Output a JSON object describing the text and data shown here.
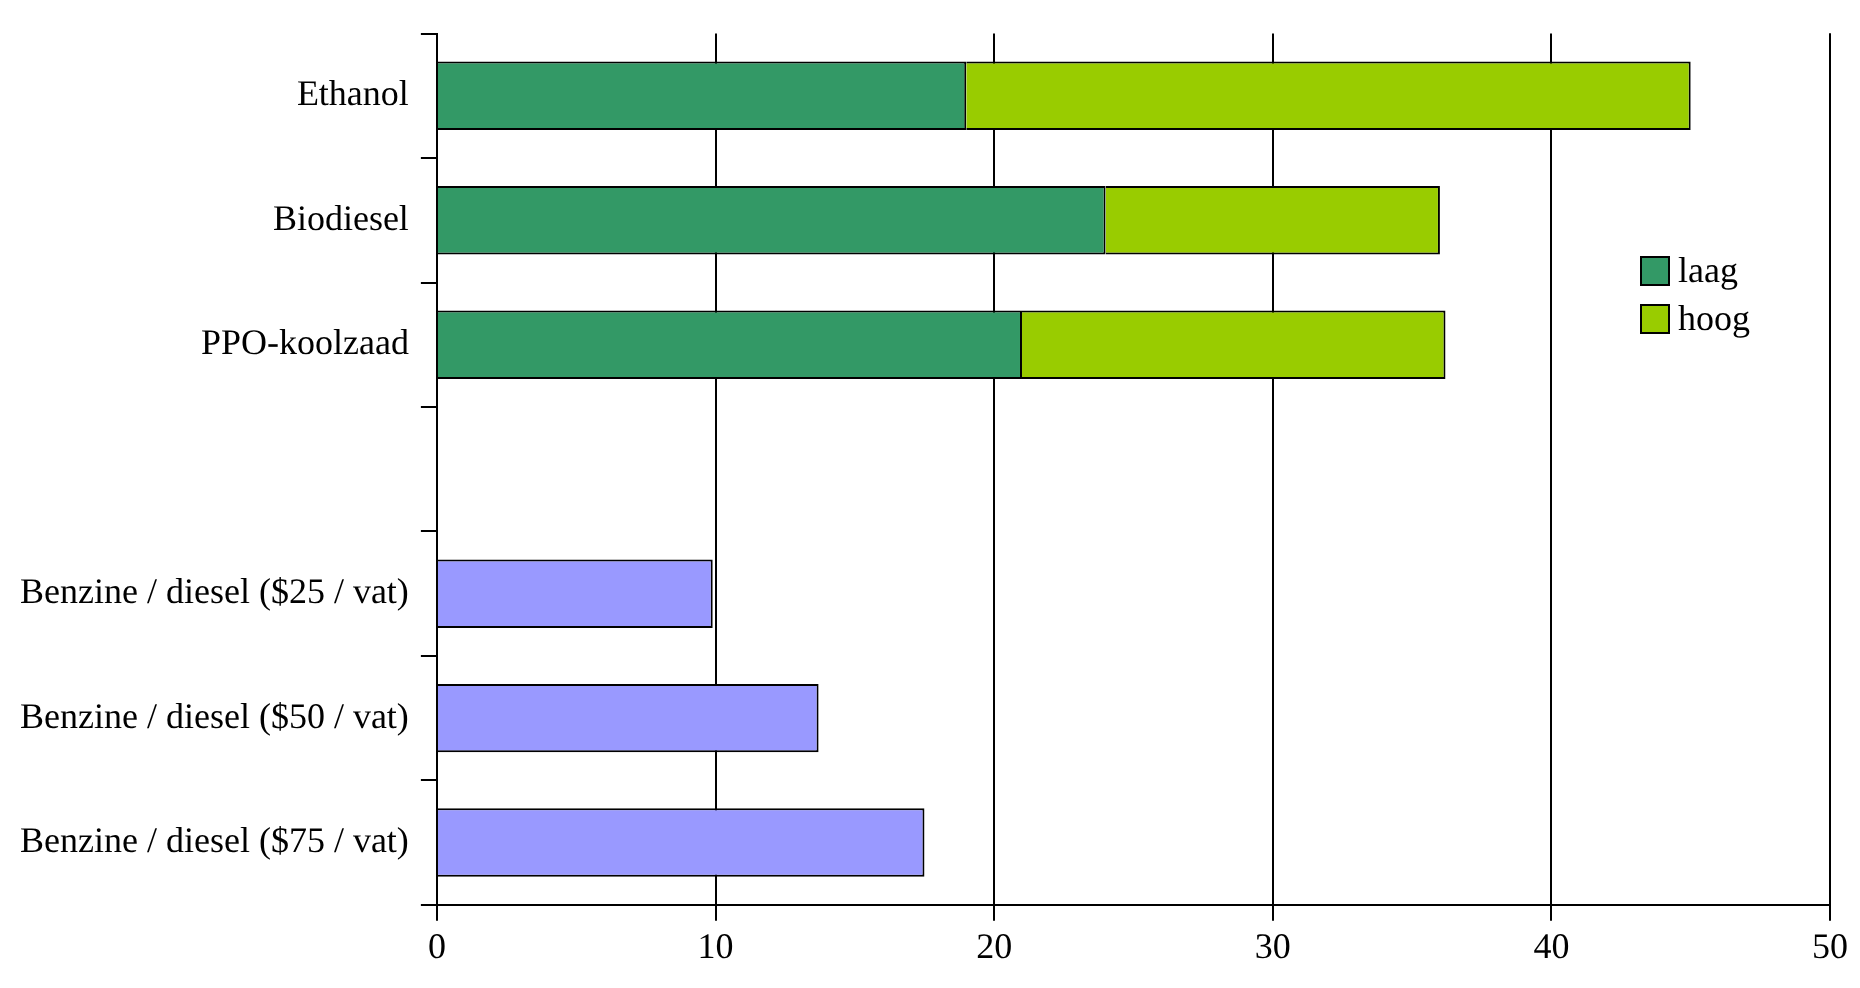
{
  "chart_data": {
    "type": "bar",
    "orientation": "horizontal",
    "stacked": true,
    "categories": [
      "Ethanol",
      "Biodiesel",
      "PPO-koolzaad",
      null,
      "Benzine / diesel ($25 / vat)",
      "Benzine / diesel ($50 / vat)",
      "Benzine / diesel ($75 / vat)"
    ],
    "series": [
      {
        "name": "laag",
        "color": "#339966",
        "values": [
          19,
          24,
          21,
          null,
          null,
          null,
          null
        ]
      },
      {
        "name": "hoog",
        "color": "#99cc00",
        "values": [
          26,
          12,
          15.2,
          null,
          null,
          null,
          null
        ]
      },
      {
        "color": "#9999ff",
        "values": [
          null,
          null,
          null,
          null,
          9.9,
          13.7,
          17.5
        ]
      }
    ],
    "xlim": [
      0,
      50
    ],
    "xticks": [
      0,
      10,
      20,
      30,
      40,
      50
    ],
    "grid": "x",
    "legend": "right"
  }
}
